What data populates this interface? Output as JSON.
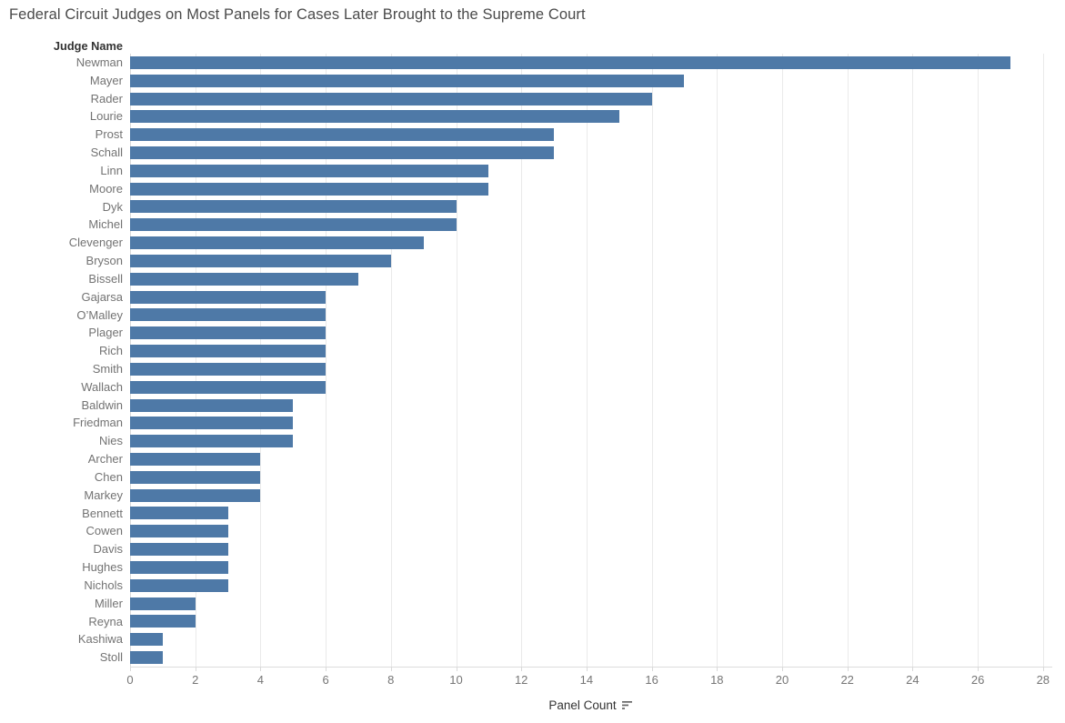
{
  "title": "Federal Circuit Judges on Most Panels for Cases Later Brought to the Supreme Court",
  "row_header": "Judge Name",
  "x_axis": {
    "label": "Panel Count",
    "sort_icon": "sort-descending-icon"
  },
  "colors": {
    "bar": "#4e79a7",
    "title_text": "#4a4a4a",
    "label_text": "#737373",
    "gridline": "#eaeaea"
  },
  "chart_data": {
    "type": "bar",
    "orientation": "horizontal",
    "title": "Federal Circuit Judges on Most Panels for Cases Later Brought to the Supreme Court",
    "xlabel": "Panel Count",
    "ylabel": "Judge Name",
    "grid": true,
    "xlim": [
      0,
      28.25
    ],
    "xticks": [
      0,
      2,
      4,
      6,
      8,
      10,
      12,
      14,
      16,
      18,
      20,
      22,
      24,
      26,
      28
    ],
    "categories": [
      "Newman",
      "Mayer",
      "Rader",
      "Lourie",
      "Prost",
      "Schall",
      "Linn",
      "Moore",
      "Dyk",
      "Michel",
      "Clevenger",
      "Bryson",
      "Bissell",
      "Gajarsa",
      "O’Malley",
      "Plager",
      "Rich",
      "Smith",
      "Wallach",
      "Baldwin",
      "Friedman",
      "Nies",
      "Archer",
      "Chen",
      "Markey",
      "Bennett",
      "Cowen",
      "Davis",
      "Hughes",
      "Nichols",
      "Miller",
      "Reyna",
      "Kashiwa",
      "Stoll"
    ],
    "values": [
      27,
      17,
      16,
      15,
      13,
      13,
      11,
      11,
      10,
      10,
      9,
      8,
      7,
      6,
      6,
      6,
      6,
      6,
      6,
      5,
      5,
      5,
      4,
      4,
      4,
      3,
      3,
      3,
      3,
      3,
      2,
      2,
      1,
      1
    ]
  }
}
